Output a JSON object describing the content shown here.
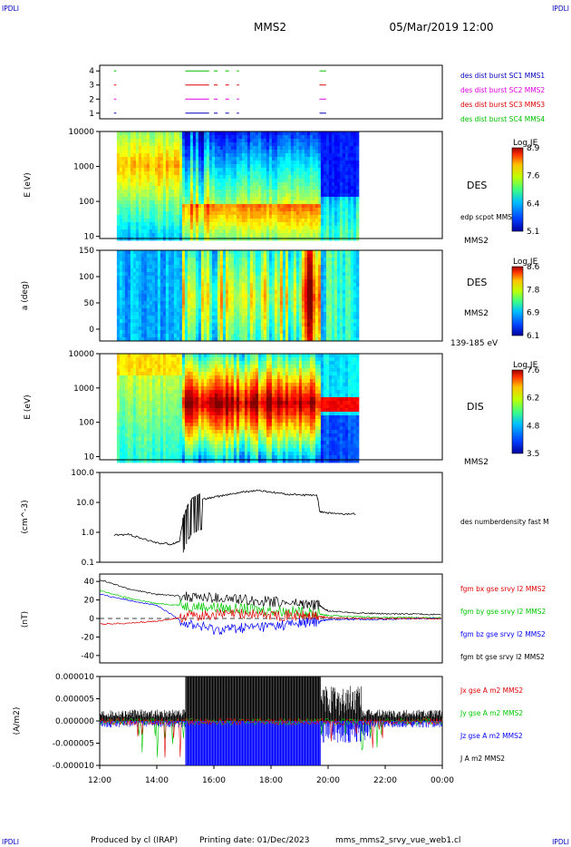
{
  "header": {
    "corner_tl": "IPDLI",
    "corner_tr": "IPDLI",
    "corner_bl": "IPDLI",
    "corner_br": "IPDLI",
    "spacecraft": "MMS2",
    "datetime": "05/Mar/2019 12:00"
  },
  "footer": {
    "produced_by": "Produced by cl (IRAP)",
    "printing_date": "Printing date: 01/Dec/2023",
    "filename": "mms_mms2_srvy_vue_web1.cl"
  },
  "colors": {
    "bx": "#e00000",
    "by": "#00c800",
    "bz": "#0000ff",
    "bt": "#000000",
    "sc1": "#0000c0",
    "sc2": "#e000e0",
    "sc3": "#e00000",
    "sc4": "#00c000",
    "corner": "#0000c0"
  },
  "chart_data": [
    {
      "type": "scatter",
      "panel": "burst",
      "yticks": [
        "1",
        "2",
        "3",
        "4"
      ],
      "legend": [
        "des dist burst SC1 MMS1",
        "des dist burst SC2 MMS2",
        "des dist burst SC3 MMS3",
        "des dist burst SC4 MMS4"
      ],
      "series": [
        {
          "level": 1,
          "segments": [
            [
              12.5,
              12.55
            ],
            [
              15.0,
              15.8
            ],
            [
              16.0,
              16.1
            ],
            [
              16.4,
              16.5
            ],
            [
              16.8,
              16.85
            ],
            [
              19.7,
              19.9
            ]
          ]
        },
        {
          "level": 2,
          "segments": [
            [
              12.5,
              12.55
            ],
            [
              15.0,
              15.8
            ],
            [
              16.0,
              16.1
            ],
            [
              16.4,
              16.5
            ],
            [
              16.8,
              16.85
            ],
            [
              19.7,
              19.9
            ]
          ]
        },
        {
          "level": 3,
          "segments": [
            [
              12.5,
              12.55
            ],
            [
              15.0,
              15.8
            ],
            [
              16.0,
              16.1
            ],
            [
              16.4,
              16.5
            ],
            [
              16.8,
              16.85
            ],
            [
              19.7,
              19.9
            ]
          ]
        },
        {
          "level": 4,
          "segments": [
            [
              12.5,
              12.55
            ],
            [
              15.0,
              15.8
            ],
            [
              16.0,
              16.1
            ],
            [
              16.4,
              16.5
            ],
            [
              16.8,
              16.85
            ],
            [
              19.7,
              19.9
            ]
          ]
        }
      ]
    },
    {
      "type": "heatmap",
      "panel": "des_energy",
      "ylabel": "E (eV)",
      "yticks": [
        "10",
        "100",
        "1000",
        "10000"
      ],
      "label": "DES",
      "sublabel": "MMS2",
      "extra_label": "edp scpot MMS2",
      "colorbar_title": "Log JE",
      "colorbar_ticks": [
        "5.1",
        "6.4",
        "7.6",
        "8.9"
      ]
    },
    {
      "type": "heatmap",
      "panel": "des_pitch",
      "ylabel": "a (deg)",
      "yticks": [
        "0",
        "50",
        "100",
        "150"
      ],
      "label": "DES",
      "sublabel": "MMS2",
      "range_label": "139-185 eV",
      "colorbar_title": "Log JE",
      "colorbar_ticks": [
        "6.1",
        "6.9",
        "7.8",
        "8.6"
      ]
    },
    {
      "type": "heatmap",
      "panel": "dis_energy",
      "ylabel": "E (eV)",
      "yticks": [
        "10",
        "100",
        "1000",
        "10000"
      ],
      "label": "DIS",
      "sublabel": "MMS2",
      "colorbar_title": "Log JE",
      "colorbar_ticks": [
        "3.5",
        "4.8",
        "6.2",
        "7.6"
      ]
    },
    {
      "type": "line",
      "panel": "density",
      "ylabel": "(cm^-3)",
      "yticks": [
        "0.1",
        "1.0",
        "10.0",
        "100.0"
      ],
      "ylim": [
        0.1,
        100
      ],
      "legend": [
        "des numberdensity fast M"
      ],
      "x": [
        12.5,
        13.0,
        13.5,
        14.0,
        14.5,
        14.8,
        15.0,
        15.2,
        15.5,
        16.0,
        16.5,
        17.0,
        17.5,
        18.0,
        18.5,
        19.0,
        19.6,
        19.7,
        20.0,
        20.5,
        21.0
      ],
      "y": [
        0.8,
        0.85,
        0.6,
        0.45,
        0.4,
        0.5,
        3.0,
        8.0,
        12.0,
        15.0,
        18.0,
        22.0,
        25.0,
        22.0,
        19.0,
        18.0,
        17.0,
        5.0,
        4.5,
        4.0,
        4.2
      ]
    },
    {
      "type": "line",
      "panel": "fgm",
      "ylabel": "(nT)",
      "yticks": [
        "-40",
        "-20",
        "0",
        "20",
        "40"
      ],
      "ylim": [
        -48,
        48
      ],
      "legend": [
        "fgm bx gse srvy l2 MMS2",
        "fgm by gse srvy l2 MMS2",
        "fgm bz gse srvy l2 MMS2",
        "fgm bt gse srvy l2 MMS2"
      ],
      "x": [
        12.0,
        13.0,
        14.0,
        15.0,
        16.0,
        17.0,
        18.0,
        19.0,
        19.7,
        20.0,
        21.0,
        22.0,
        23.0,
        24.0
      ],
      "series": [
        {
          "name": "bt",
          "values": [
            42,
            32,
            26,
            24,
            22,
            20,
            18,
            16,
            14,
            8,
            6,
            5,
            5,
            4
          ]
        },
        {
          "name": "by",
          "values": [
            30,
            22,
            16,
            14,
            12,
            10,
            9,
            7,
            5,
            3,
            2,
            1,
            1,
            1
          ]
        },
        {
          "name": "bz",
          "values": [
            26,
            20,
            14,
            -5,
            -12,
            -10,
            -8,
            -5,
            -3,
            -1,
            -1,
            -1,
            0,
            0
          ]
        },
        {
          "name": "bx",
          "values": [
            -6,
            -5,
            -3,
            2,
            4,
            5,
            4,
            3,
            2,
            1,
            0,
            0,
            0,
            0
          ]
        }
      ]
    },
    {
      "type": "line",
      "panel": "current",
      "ylabel": "(A/m2)",
      "yticks": [
        "-0.000010",
        "-0.000005",
        "0.000000",
        "0.000005",
        "0.000010"
      ],
      "ylim": [
        -1e-05,
        1e-05
      ],
      "legend": [
        "Jx gse A m2 MMS2",
        "Jy gse A m2 MMS2",
        "Jz gse A m2 MMS2",
        "J A m2 MMS2"
      ],
      "xticks": [
        "12:00",
        "14:00",
        "16:00",
        "18:00",
        "20:00",
        "22:00",
        "00:00"
      ],
      "xlim": [
        12,
        24
      ]
    }
  ]
}
